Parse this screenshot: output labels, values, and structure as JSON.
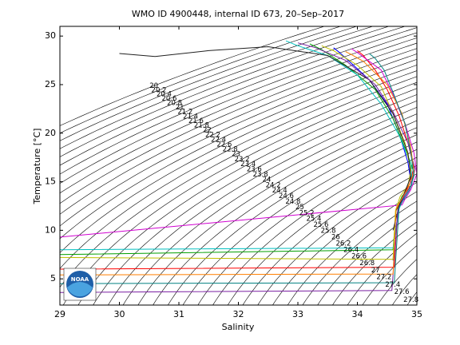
{
  "chart_data": {
    "type": "line",
    "title": "WMO ID 4900448, internal ID 673, 20–Sep–2017",
    "x_label": "Salinity",
    "y_label": "Temperature [°C]",
    "xlim": [
      29,
      35
    ],
    "ylim": [
      2.3,
      31
    ],
    "xticks": [
      29,
      30,
      31,
      32,
      33,
      34,
      35
    ],
    "yticks": [
      5,
      10,
      15,
      20,
      25,
      30
    ],
    "contours": {
      "color": "#000000",
      "levels": [
        20,
        20.2,
        20.4,
        20.6,
        20.8,
        21,
        21.2,
        21.4,
        21.6,
        21.8,
        22,
        22.2,
        22.4,
        22.6,
        22.8,
        23,
        23.2,
        23.4,
        23.6,
        23.8,
        24,
        24.2,
        24.4,
        24.6,
        24.8,
        25,
        25.2,
        25.4,
        25.6,
        25.8,
        26,
        26.2,
        26.4,
        26.6,
        26.8,
        27,
        27.2,
        27.4,
        27.6,
        27.8
      ]
    },
    "logo_text": "NOAA",
    "series": [
      {
        "color": "#0000ff",
        "x": [
          33.6,
          33.7,
          33.9,
          34.2,
          34.5,
          34.7,
          34.85,
          34.9,
          34.8,
          34.7,
          34.62,
          34.6
        ],
        "values": [
          28.8,
          28.3,
          27.2,
          25.5,
          23,
          20,
          17,
          15,
          13.8,
          12.5,
          9,
          6.9
        ]
      },
      {
        "color": "#00a000",
        "x": [
          33.2,
          33.4,
          33.8,
          34.3,
          34.6,
          34.8,
          34.95,
          34.9,
          34.75,
          34.65,
          34.6,
          29
        ],
        "values": [
          29.2,
          28.6,
          27,
          24.5,
          21.5,
          18.5,
          16,
          14.5,
          13.5,
          12,
          8,
          7.5
        ]
      },
      {
        "color": "#ff0000",
        "x": [
          34,
          34.1,
          34.3,
          34.5,
          34.7,
          34.85,
          34.95,
          34.88,
          34.78,
          34.68,
          34.62,
          29
        ],
        "values": [
          28.5,
          28,
          26.5,
          24.5,
          21.8,
          19,
          16.5,
          14.8,
          13.7,
          12.3,
          6.2,
          6
        ]
      },
      {
        "color": "#00c0c0",
        "x": [
          32.8,
          33,
          33.5,
          34,
          34.4,
          34.7,
          34.9,
          34.92,
          34.8,
          34.7,
          34.6,
          29
        ],
        "values": [
          29.5,
          29,
          28,
          26,
          23,
          19.8,
          16.8,
          14.8,
          13.6,
          12.2,
          8.2,
          8
        ]
      },
      {
        "color": "#d000d0",
        "x": [
          33.9,
          34,
          34.4,
          34.6,
          34.8,
          34.95,
          35,
          34.9,
          34.8,
          34.75,
          29
        ],
        "values": [
          28.7,
          28.3,
          26.5,
          24,
          21,
          18,
          15.8,
          14.2,
          13.2,
          12.6,
          9.3
        ]
      },
      {
        "color": "#bfbf00",
        "x": [
          33.4,
          33.6,
          34,
          34.4,
          34.6,
          34.8,
          34.9,
          34.85,
          34.72,
          34.64,
          34.6,
          29
        ],
        "values": [
          29,
          28.5,
          27,
          24.8,
          22,
          19,
          16.2,
          14.6,
          13.5,
          12,
          7,
          7.2
        ]
      },
      {
        "color": "#202020",
        "x": [
          30,
          30.6,
          31.5,
          32.5,
          33.5,
          34.2,
          34.6,
          34.85,
          34.9,
          34.8,
          34.7,
          34.6
        ],
        "values": [
          28.2,
          27.9,
          28.5,
          28.9,
          28,
          25.5,
          22,
          18,
          15.5,
          14,
          12.5,
          10
        ]
      },
      {
        "color": "#7a1fa2",
        "x": [
          33,
          33.3,
          33.8,
          34.3,
          34.6,
          34.85,
          34.97,
          34.9,
          34.78,
          34.68,
          34.58,
          29
        ],
        "values": [
          29.3,
          28.8,
          27.5,
          25,
          22.2,
          19,
          16.3,
          14.6,
          13.4,
          12.1,
          3.8,
          3.6
        ]
      },
      {
        "color": "#ff7f00",
        "x": [
          33.8,
          33.9,
          34.1,
          34.5,
          34.75,
          34.9,
          34.95,
          34.85,
          34.75,
          34.65,
          34.6,
          29
        ],
        "values": [
          28.4,
          28.1,
          27.4,
          25,
          22,
          18.5,
          16,
          14.3,
          13.3,
          12.2,
          5.5,
          5.4
        ]
      },
      {
        "color": "#008080",
        "x": [
          34.2,
          34.3,
          34.45,
          34.6,
          34.8,
          34.9,
          34.95,
          34.88,
          34.78,
          34.7,
          34.62,
          29
        ],
        "values": [
          28.2,
          27.7,
          26.5,
          24.2,
          21,
          18,
          15.6,
          14.2,
          13.2,
          12.4,
          4.6,
          4.5
        ]
      }
    ]
  }
}
